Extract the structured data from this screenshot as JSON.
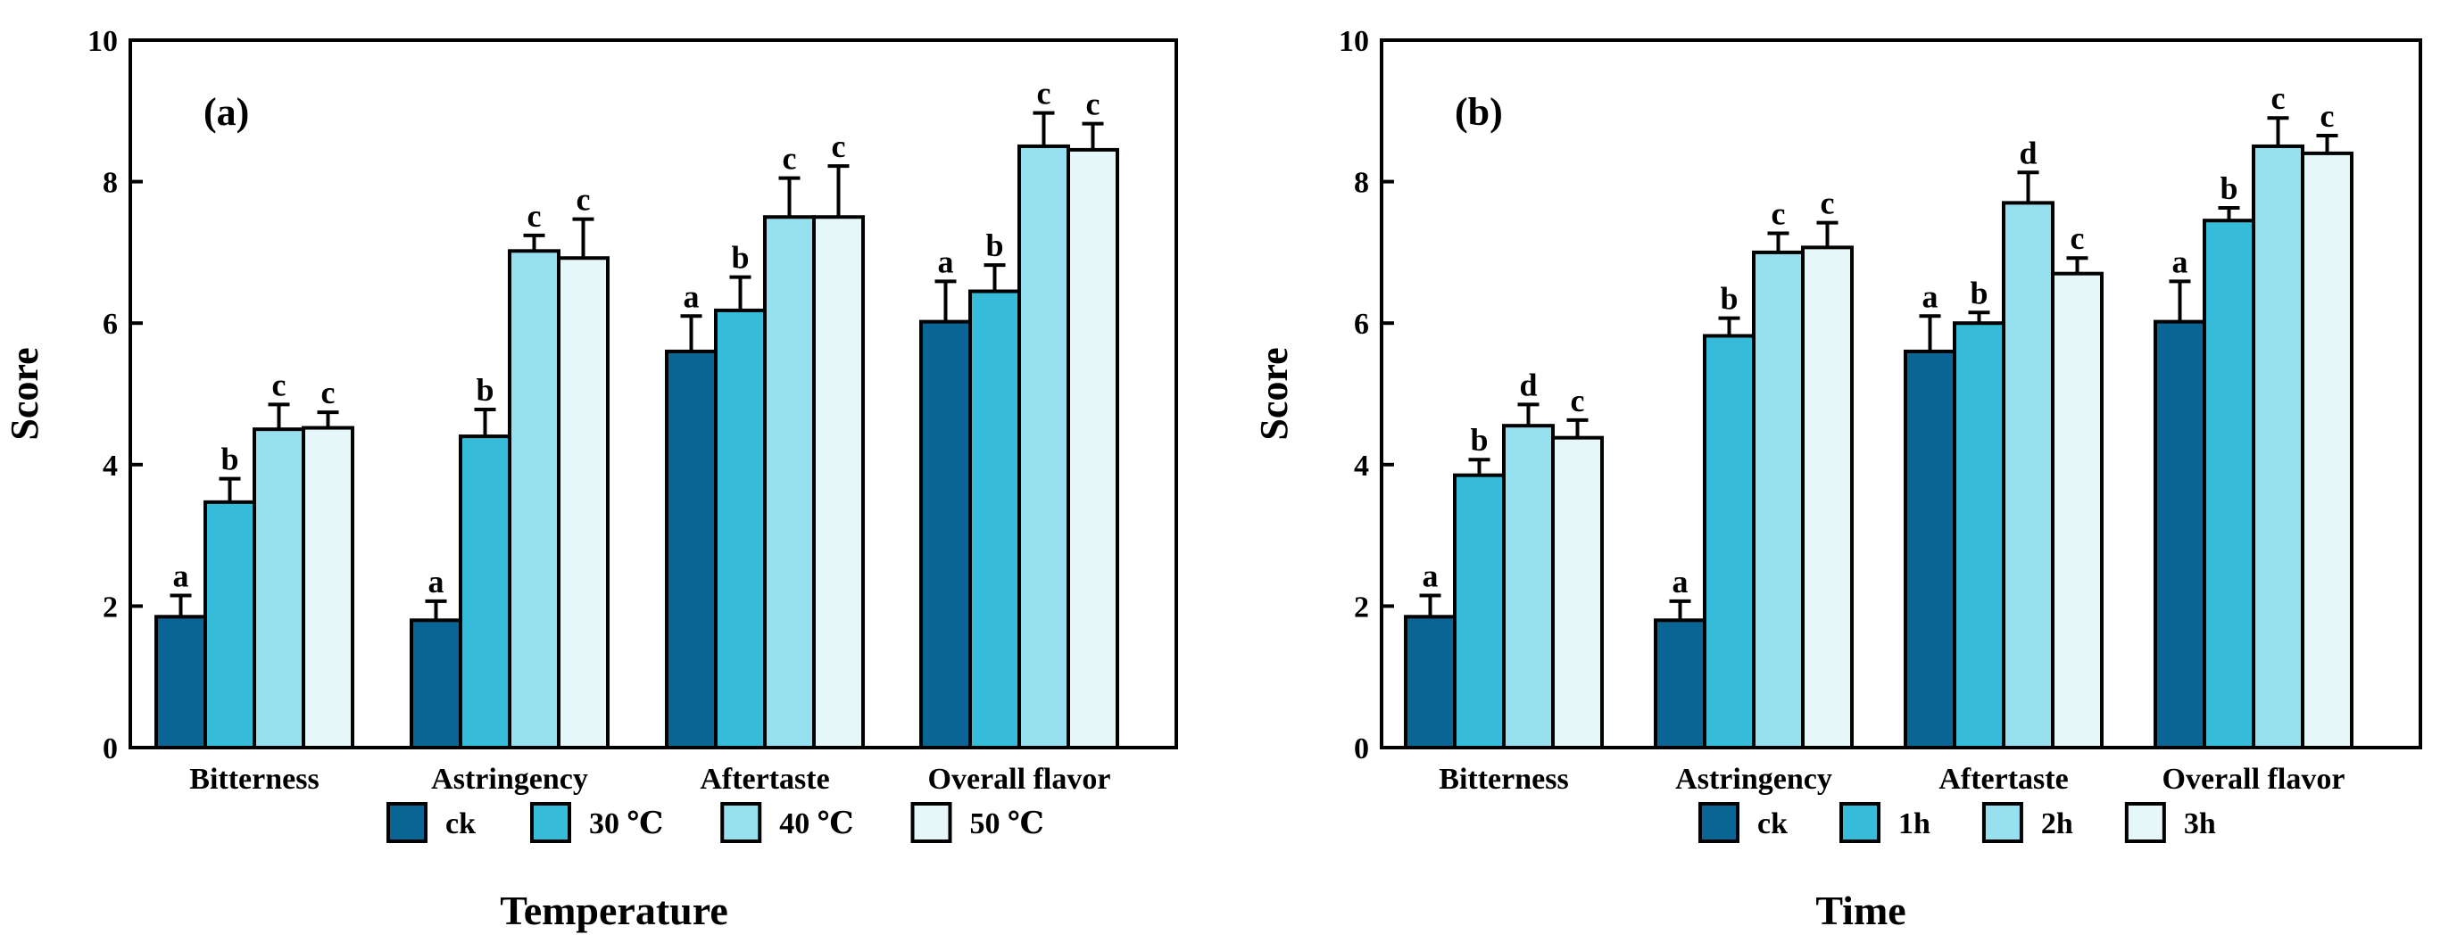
{
  "chart_data": [
    {
      "type": "bar",
      "panel_label": "(a)",
      "title": "",
      "xlabel": "Temperature",
      "ylabel": "Score",
      "ylim": [
        0,
        10
      ],
      "yticks": [
        0,
        2,
        4,
        6,
        8,
        10
      ],
      "grid": false,
      "legend_position": "bottom",
      "categories": [
        "Bitterness",
        "Astringency",
        "Aftertaste",
        "Overall flavor"
      ],
      "series": [
        {
          "name": "ck",
          "color": "#0a6494",
          "values": [
            1.85,
            1.8,
            5.6,
            6.02
          ],
          "errors": [
            0.3,
            0.27,
            0.5,
            0.57
          ],
          "letters": [
            "a",
            "a",
            "a",
            "a"
          ]
        },
        {
          "name": "30 ℃",
          "color": "#36bcd8",
          "values": [
            3.47,
            4.4,
            6.18,
            6.45
          ],
          "errors": [
            0.33,
            0.38,
            0.47,
            0.37
          ],
          "letters": [
            "b",
            "b",
            "b",
            "b"
          ]
        },
        {
          "name": "40 ℃",
          "color": "#96e0f0",
          "values": [
            4.5,
            7.02,
            7.5,
            8.5
          ],
          "errors": [
            0.35,
            0.22,
            0.55,
            0.47
          ],
          "letters": [
            "c",
            "c",
            "c",
            "c"
          ]
        },
        {
          "name": "50 ℃",
          "color": "#e6f7f9",
          "values": [
            4.52,
            6.92,
            7.5,
            8.45
          ],
          "errors": [
            0.22,
            0.55,
            0.72,
            0.37
          ],
          "letters": [
            "c",
            "c",
            "c",
            "c"
          ]
        }
      ]
    },
    {
      "type": "bar",
      "panel_label": "(b)",
      "title": "",
      "xlabel": "Time",
      "ylabel": "Score",
      "ylim": [
        0,
        10
      ],
      "yticks": [
        0,
        2,
        4,
        6,
        8,
        10
      ],
      "grid": false,
      "legend_position": "bottom",
      "categories": [
        "Bitterness",
        "Astringency",
        "Aftertaste",
        "Overall flavor"
      ],
      "series": [
        {
          "name": "ck",
          "color": "#0a6494",
          "values": [
            1.85,
            1.8,
            5.6,
            6.02
          ],
          "errors": [
            0.3,
            0.27,
            0.5,
            0.57
          ],
          "letters": [
            "a",
            "a",
            "a",
            "a"
          ]
        },
        {
          "name": "1h",
          "color": "#36bcd8",
          "values": [
            3.85,
            5.82,
            6.0,
            7.45
          ],
          "errors": [
            0.22,
            0.25,
            0.15,
            0.18
          ],
          "letters": [
            "b",
            "b",
            "b",
            "b"
          ]
        },
        {
          "name": "2h",
          "color": "#96e0f0",
          "values": [
            4.55,
            7.0,
            7.7,
            8.5
          ],
          "errors": [
            0.3,
            0.27,
            0.43,
            0.4
          ],
          "letters": [
            "d",
            "c",
            "d",
            "c"
          ]
        },
        {
          "name": "3h",
          "color": "#e6f7f9",
          "values": [
            4.38,
            7.07,
            6.7,
            8.4
          ],
          "errors": [
            0.25,
            0.35,
            0.22,
            0.25
          ],
          "letters": [
            "c",
            "c",
            "c",
            "c"
          ]
        }
      ]
    }
  ]
}
